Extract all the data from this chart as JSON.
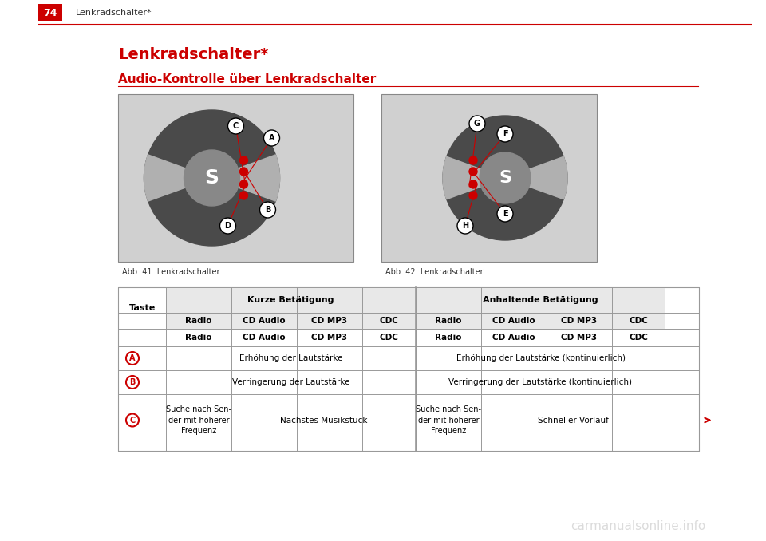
{
  "page_number": "74",
  "page_header": "Lenkradschalter*",
  "main_title": "Lenkradschalter*",
  "subtitle": "Audio-Kontrolle über Lenkradschalter",
  "fig1_caption": "Abb. 41  Lenkradschalter",
  "fig2_caption": "Abb. 42  Lenkradschalter",
  "table_header_row1": [
    "",
    "Kurze Betätigung",
    "Anhaltende Betätigung"
  ],
  "table_header_row2": [
    "Taste",
    "Radio",
    "CD Audio",
    "CD MP3",
    "CDC",
    "Radio",
    "CD Audio",
    "CD MP3",
    "CDC"
  ],
  "table_rows": [
    {
      "key": "A",
      "kurz_merged": "Erhöhung der Lautstärke",
      "anhalt_merged": "Erhöhung der Lautstärke (kontinuierlich)"
    },
    {
      "key": "B",
      "kurz_merged": "Verringerung der Lautstärke",
      "anhalt_merged": "Verringerung der Lautstärke (kontinuierlich)"
    },
    {
      "key": "C",
      "kurz_col1": "Suche nach Sen-\nder mit höherer\nFrequenz",
      "kurz_merged23": "Nächstes Musikstück",
      "anhalt_col1": "Suche nach Sen-\nder mit höherer\nFrequenz",
      "anhalt_merged23": "Schneller Vorlauf"
    }
  ],
  "header_bg": "#cc0000",
  "header_text_color": "#ffffff",
  "title_color": "#cc0000",
  "subtitle_color": "#cc0000",
  "line_color": "#cc0000",
  "table_border_color": "#999999",
  "table_header_bg": "#e8e8e8",
  "table_row_bg_alt": "#f5f5f5",
  "body_text_color": "#222222",
  "arrow_color": "#cc0000",
  "watermark_text": "carmanualsonline.info",
  "watermark_color": "#cccccc"
}
